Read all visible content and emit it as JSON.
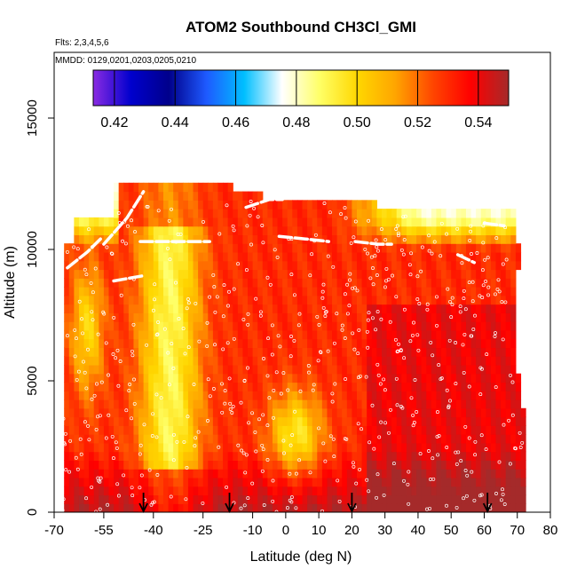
{
  "chart_data": {
    "type": "heatmap",
    "title": "ATOM2 Southbound CH3Cl_GMI",
    "flights_label": "Flts: 2,3,4,5,6",
    "dates_label": "MMDD: 0129,0201,0203,0205,0210",
    "xlabel": "Latitude (deg N)",
    "ylabel": "Altitude (m)",
    "xlim": [
      -70,
      80
    ],
    "ylim": [
      0,
      17500
    ],
    "x_ticks": [
      -70,
      -55,
      -40,
      -25,
      -10,
      0,
      10,
      20,
      30,
      40,
      50,
      60,
      70,
      80
    ],
    "y_ticks": [
      0,
      5000,
      10000,
      15000
    ],
    "colorbar": {
      "min": 0.413,
      "max": 0.55,
      "ticks": [
        0.42,
        0.44,
        0.46,
        0.48,
        0.5,
        0.52,
        0.54
      ],
      "tick_labels": [
        "0.42",
        "0.44",
        "0.46",
        "0.48",
        "0.50",
        "0.52",
        "0.54"
      ],
      "colors": [
        "#8a2be2",
        "#0000cd",
        "#00008b",
        "#1e5aff",
        "#00bfff",
        "#ffffff",
        "#ffff66",
        "#ffd700",
        "#ffa500",
        "#ff4500",
        "#ff0000",
        "#a52a2a"
      ]
    },
    "down_arrows_lat": [
      -43,
      -17,
      20,
      61
    ],
    "flight_track_color": "#ffffff",
    "grid": false
  }
}
